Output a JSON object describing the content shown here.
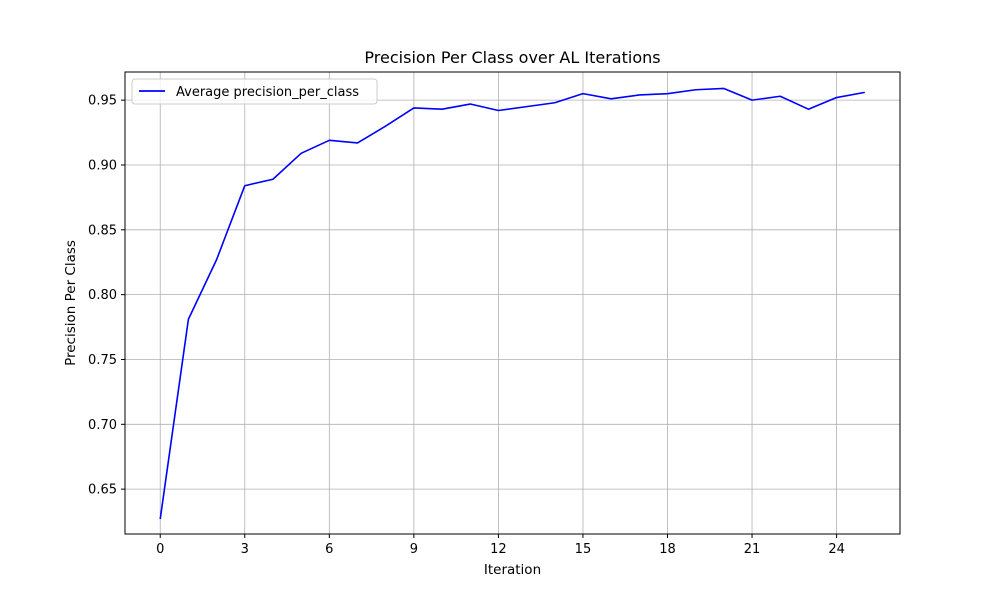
{
  "chart_data": {
    "type": "line",
    "title": "Precision Per Class over AL Iterations",
    "xlabel": "Iteration",
    "ylabel": "Precision Per Class",
    "xlim": [
      -1.25,
      26.25
    ],
    "ylim": [
      0.6154,
      0.9717
    ],
    "xticks": [
      0,
      3,
      6,
      9,
      12,
      15,
      18,
      21,
      24
    ],
    "yticks": [
      0.65,
      0.7,
      0.75,
      0.8,
      0.85,
      0.9,
      0.95
    ],
    "ytick_labels": [
      "0.65",
      "0.70",
      "0.75",
      "0.80",
      "0.85",
      "0.90",
      "0.95"
    ],
    "grid": true,
    "legend_position": "top-left",
    "series": [
      {
        "name": "Average precision_per_class",
        "color": "#0000ff",
        "x": [
          0,
          1,
          2,
          3,
          4,
          5,
          6,
          7,
          8,
          9,
          10,
          11,
          12,
          13,
          14,
          15,
          16,
          17,
          18,
          19,
          20,
          21,
          22,
          23,
          24,
          25
        ],
        "values": [
          0.627,
          0.781,
          0.827,
          0.884,
          0.889,
          0.909,
          0.919,
          0.917,
          0.93,
          0.944,
          0.943,
          0.947,
          0.942,
          0.945,
          0.948,
          0.955,
          0.951,
          0.954,
          0.955,
          0.958,
          0.959,
          0.95,
          0.953,
          0.943,
          0.952,
          0.956
        ]
      }
    ]
  }
}
